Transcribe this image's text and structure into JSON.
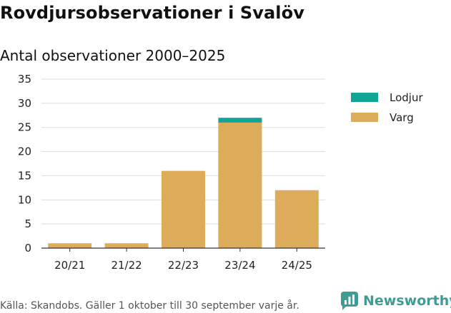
{
  "title": "Rovdjursobservationer i Svalöv",
  "subtitle": "Antal observationer 2000–2025",
  "source": "Källa: Skandobs. Gäller 1 oktober till 30 september varje år.",
  "brand": "Newsworthy",
  "colors": {
    "varg": "#dcac5a",
    "lodjur": "#12a597",
    "brand": "#3f9c95"
  },
  "chart_data": {
    "type": "bar",
    "stacked": true,
    "categories": [
      "20/21",
      "21/22",
      "22/23",
      "23/24",
      "24/25"
    ],
    "series": [
      {
        "name": "Varg",
        "values": [
          1,
          1,
          16,
          26,
          12
        ]
      },
      {
        "name": "Lodjur",
        "values": [
          0,
          0,
          0,
          1,
          0
        ]
      }
    ],
    "yticks": [
      0,
      5,
      10,
      15,
      20,
      25,
      30,
      35
    ],
    "ylim": [
      0,
      35
    ],
    "grid": true,
    "legend": "right",
    "legend_order": [
      "Lodjur",
      "Varg"
    ]
  }
}
